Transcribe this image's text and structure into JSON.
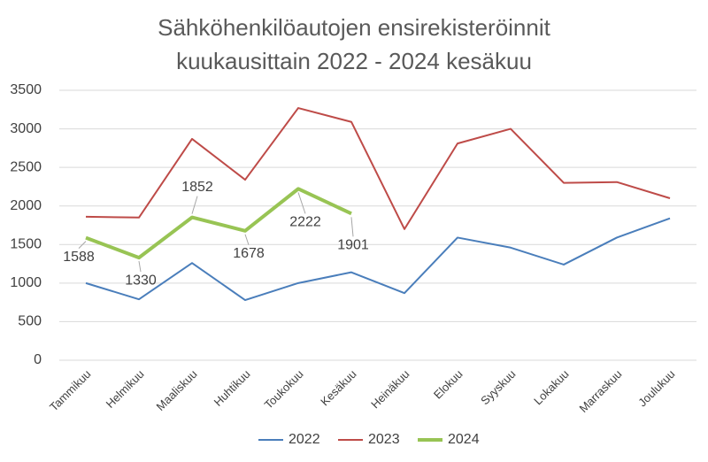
{
  "chart_data": {
    "type": "line",
    "title": "Sähköhenkilöautojen ensirekisteröinnit kuukausittain 2022 - 2024 kesäkuu",
    "categories": [
      "Tammikuu",
      "Helmikuu",
      "Maaliskuu",
      "Huhtikuu",
      "Toukokuu",
      "Kesäkuu",
      "Heinäkuu",
      "Elokuu",
      "Syyskuu",
      "Lokakuu",
      "Marraskuu",
      "Joulukuu"
    ],
    "series": [
      {
        "name": "2022",
        "color": "#4a7ebb",
        "values": [
          1000,
          790,
          1260,
          780,
          1000,
          1140,
          870,
          1590,
          1460,
          1240,
          1590,
          1840
        ]
      },
      {
        "name": "2023",
        "color": "#be4b48",
        "values": [
          1860,
          1850,
          2870,
          2340,
          3270,
          3090,
          1700,
          2810,
          3000,
          2300,
          2310,
          2100
        ]
      },
      {
        "name": "2024",
        "color": "#98c454",
        "values": [
          1588,
          1330,
          1852,
          1678,
          2222,
          1901,
          null,
          null,
          null,
          null,
          null,
          null
        ],
        "data_labels": true
      }
    ],
    "ylim": [
      0,
      3500
    ],
    "yticks": [
      0,
      500,
      1000,
      1500,
      2000,
      2500,
      3000,
      3500
    ],
    "grid": true,
    "legend": "bottom"
  }
}
